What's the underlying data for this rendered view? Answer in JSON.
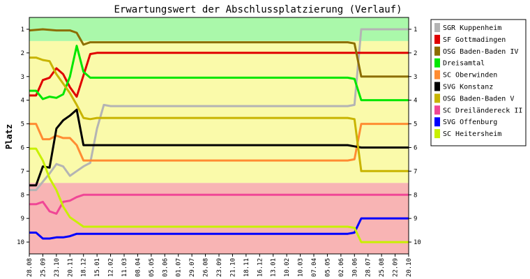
{
  "chart_data": {
    "type": "line",
    "title": "Erwartungswert der Abschlussplatzierung (Verlauf)",
    "ylabel": "Platz",
    "xlabel": "",
    "ylim": [
      10.5,
      0.5
    ],
    "y_inverted": true,
    "y_ticks": [
      "1",
      "2",
      "3",
      "4",
      "5",
      "6",
      "7",
      "8",
      "9",
      "10"
    ],
    "grid": false,
    "legend_position": "right",
    "categories": [
      "28.08",
      "25.09",
      "23.10",
      "20.11",
      "18.12",
      "15.01",
      "12.02",
      "11.03",
      "08.04",
      "05.05",
      "03.06",
      "01.07",
      "29.07",
      "26.08",
      "23.09",
      "21.10",
      "18.11",
      "16.12",
      "13.01",
      "10.02",
      "10.03",
      "07.04",
      "05.05",
      "02.06",
      "30.06",
      "28.07",
      "25.08",
      "22.09",
      "20.10"
    ],
    "background_bands": [
      {
        "label": "aufstieg",
        "color": "#aaf8aa",
        "from_rank": 0.5,
        "to_rank": 1.5
      },
      {
        "label": "mitte",
        "color": "#fafaaa",
        "from_rank": 1.5,
        "to_rank": 7.5
      },
      {
        "label": "abstieg",
        "color": "#f8b4b4",
        "from_rank": 7.5,
        "to_rank": 10.5
      }
    ],
    "series": [
      {
        "name": "SGR Kuppenheim",
        "color": "#b4b4b4",
        "points": [
          [
            0,
            7.8
          ],
          [
            0.5,
            7.8
          ],
          [
            1,
            7.45
          ],
          [
            1.5,
            7.1
          ],
          [
            2,
            6.7
          ],
          [
            2.5,
            6.8
          ],
          [
            3,
            7.2
          ],
          [
            3.5,
            7.0
          ],
          [
            4,
            6.8
          ],
          [
            4.5,
            6.65
          ],
          [
            5,
            5.2
          ],
          [
            5.5,
            4.2
          ],
          [
            6,
            4.25
          ],
          [
            23.5,
            4.25
          ],
          [
            24,
            4.2
          ],
          [
            24.5,
            1.0
          ],
          [
            28,
            1.0
          ]
        ]
      },
      {
        "name": "SF Gottmadingen",
        "color": "#e00000",
        "points": [
          [
            0,
            3.8
          ],
          [
            0.5,
            3.8
          ],
          [
            1,
            3.15
          ],
          [
            1.5,
            3.05
          ],
          [
            2,
            2.65
          ],
          [
            2.5,
            2.9
          ],
          [
            3,
            3.45
          ],
          [
            3.5,
            3.85
          ],
          [
            4,
            2.95
          ],
          [
            4.5,
            2.05
          ],
          [
            5,
            2.0
          ],
          [
            28,
            2.0
          ]
        ]
      },
      {
        "name": "OSG Baden-Baden IV",
        "color": "#8c6e00",
        "points": [
          [
            0,
            1.05
          ],
          [
            1,
            1.0
          ],
          [
            2,
            1.05
          ],
          [
            3,
            1.05
          ],
          [
            3.5,
            1.15
          ],
          [
            4,
            1.65
          ],
          [
            4.5,
            1.55
          ],
          [
            5,
            1.55
          ],
          [
            23.5,
            1.55
          ],
          [
            24,
            1.6
          ],
          [
            24.5,
            3.0
          ],
          [
            28,
            3.0
          ]
        ]
      },
      {
        "name": "Dreisamtal",
        "color": "#00e600",
        "points": [
          [
            0,
            3.6
          ],
          [
            0.5,
            3.6
          ],
          [
            1,
            3.95
          ],
          [
            1.5,
            3.85
          ],
          [
            2,
            3.9
          ],
          [
            2.5,
            3.75
          ],
          [
            3,
            3.0
          ],
          [
            3.5,
            1.7
          ],
          [
            4,
            2.8
          ],
          [
            4.5,
            3.05
          ],
          [
            5,
            3.05
          ],
          [
            23.5,
            3.05
          ],
          [
            24,
            3.1
          ],
          [
            24.5,
            4.0
          ],
          [
            28,
            4.0
          ]
        ]
      },
      {
        "name": "SC Oberwinden",
        "color": "#ff8c32",
        "points": [
          [
            0,
            5.0
          ],
          [
            0.5,
            5.0
          ],
          [
            1,
            5.65
          ],
          [
            1.5,
            5.65
          ],
          [
            2,
            5.5
          ],
          [
            2.5,
            5.6
          ],
          [
            3,
            5.6
          ],
          [
            3.5,
            5.9
          ],
          [
            4,
            6.55
          ],
          [
            23.5,
            6.55
          ],
          [
            24,
            6.5
          ],
          [
            24.5,
            5.0
          ],
          [
            28,
            5.0
          ]
        ]
      },
      {
        "name": "SVG Konstanz",
        "color": "#000000",
        "points": [
          [
            0,
            7.6
          ],
          [
            0.5,
            7.6
          ],
          [
            1,
            6.8
          ],
          [
            1.5,
            6.85
          ],
          [
            2,
            5.2
          ],
          [
            2.5,
            4.85
          ],
          [
            3,
            4.65
          ],
          [
            3.5,
            4.4
          ],
          [
            4,
            5.9
          ],
          [
            23.5,
            5.9
          ],
          [
            24,
            5.95
          ],
          [
            24.5,
            6.0
          ],
          [
            28,
            6.0
          ]
        ]
      },
      {
        "name": "OSG Baden-Baden V",
        "color": "#c8b400",
        "points": [
          [
            0,
            2.2
          ],
          [
            0.5,
            2.2
          ],
          [
            1,
            2.3
          ],
          [
            1.5,
            2.35
          ],
          [
            2,
            2.9
          ],
          [
            2.5,
            3.3
          ],
          [
            3,
            3.7
          ],
          [
            3.5,
            4.2
          ],
          [
            4,
            4.75
          ],
          [
            4.5,
            4.8
          ],
          [
            5,
            4.75
          ],
          [
            23.5,
            4.75
          ],
          [
            24,
            4.8
          ],
          [
            24.5,
            7.0
          ],
          [
            28,
            7.0
          ]
        ]
      },
      {
        "name": "SC Dreiländereck II",
        "color": "#f04696",
        "points": [
          [
            0,
            8.4
          ],
          [
            0.5,
            8.4
          ],
          [
            1,
            8.3
          ],
          [
            1.5,
            8.7
          ],
          [
            2,
            8.8
          ],
          [
            2.5,
            8.3
          ],
          [
            3,
            8.25
          ],
          [
            3.5,
            8.1
          ],
          [
            4,
            8.0
          ],
          [
            28,
            8.0
          ]
        ]
      },
      {
        "name": "SVG Offenburg",
        "color": "#0000ff",
        "points": [
          [
            0,
            9.6
          ],
          [
            0.5,
            9.6
          ],
          [
            1,
            9.85
          ],
          [
            1.5,
            9.85
          ],
          [
            2,
            9.8
          ],
          [
            2.5,
            9.8
          ],
          [
            3,
            9.75
          ],
          [
            3.5,
            9.65
          ],
          [
            4,
            9.65
          ],
          [
            23.5,
            9.65
          ],
          [
            24,
            9.6
          ],
          [
            24.5,
            9.0
          ],
          [
            28,
            9.0
          ]
        ]
      },
      {
        "name": "SC Heitersheim",
        "color": "#c8f000",
        "points": [
          [
            0,
            6.05
          ],
          [
            0.5,
            6.05
          ],
          [
            1,
            6.55
          ],
          [
            1.5,
            7.3
          ],
          [
            2,
            7.8
          ],
          [
            2.5,
            8.5
          ],
          [
            3,
            8.95
          ],
          [
            3.5,
            9.15
          ],
          [
            4,
            9.35
          ],
          [
            23.5,
            9.35
          ],
          [
            24,
            9.4
          ],
          [
            24.5,
            10.0
          ],
          [
            28,
            10.0
          ]
        ]
      }
    ]
  }
}
